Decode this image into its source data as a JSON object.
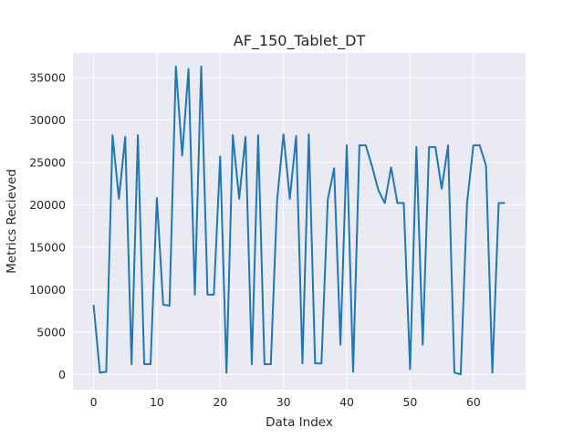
{
  "chart_data": {
    "type": "line",
    "title": "AF_150_Tablet_DT",
    "xlabel": "Data Index",
    "ylabel": "Metrics Recieved",
    "xlim": [
      -3.25,
      68.25
    ],
    "ylim": [
      -1800,
      37900
    ],
    "xticks": [
      0,
      10,
      20,
      30,
      40,
      50,
      60
    ],
    "yticks": [
      0,
      5000,
      10000,
      15000,
      20000,
      25000,
      30000,
      35000
    ],
    "grid": true,
    "background": "#eaeaf2",
    "grid_color": "#ffffff",
    "line_color": "#1f77b4",
    "series": [
      {
        "x": [
          0,
          1,
          2,
          3,
          4,
          5,
          6,
          7,
          8,
          9,
          10,
          11,
          12,
          13,
          14,
          15,
          16,
          17,
          18,
          19,
          20,
          21,
          22,
          23,
          24,
          25,
          26,
          27,
          28,
          29,
          30,
          31,
          32,
          33,
          34,
          35,
          36,
          37,
          38,
          39,
          40,
          41,
          42,
          43,
          44,
          45,
          46,
          47,
          48,
          49,
          50,
          51,
          52,
          53,
          54,
          55,
          56,
          57,
          58,
          59,
          60,
          61,
          62,
          63,
          64,
          65
        ],
        "values": [
          8200,
          200,
          300,
          28200,
          20700,
          28000,
          1200,
          28200,
          1200,
          1200,
          20800,
          8200,
          8100,
          36300,
          25800,
          36000,
          9400,
          36300,
          9400,
          9400,
          25700,
          200,
          28200,
          20700,
          28000,
          1200,
          28200,
          1200,
          1200,
          20600,
          28300,
          20700,
          28100,
          1300,
          28300,
          1300,
          1300,
          20600,
          24300,
          3500,
          27000,
          300,
          27000,
          27000,
          24500,
          21700,
          20200,
          24400,
          20200,
          20200,
          600,
          26800,
          3500,
          26800,
          26800,
          21900,
          27000,
          200,
          0,
          20200,
          27000,
          27000,
          24600,
          200,
          20200,
          20200
        ]
      }
    ]
  }
}
